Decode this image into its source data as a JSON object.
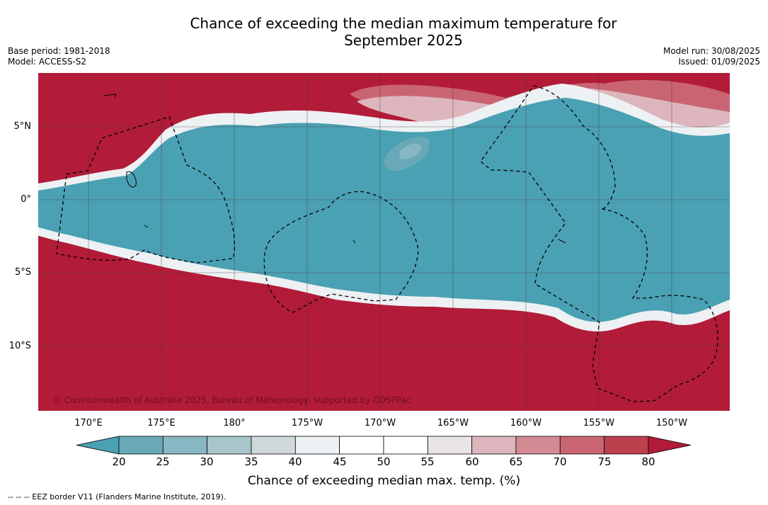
{
  "title_line1": "Chance of exceeding the median maximum temperature for",
  "title_line2": "September 2025",
  "base_period": "Base period: 1981-2018",
  "model": "Model: ACCESS-S2",
  "model_run": "Model run: 30/08/2025",
  "issued": "Issued: 01/09/2025",
  "lat_labels": [
    "5°N",
    "0°",
    "5°S",
    "10°S"
  ],
  "lon_labels": [
    "170°E",
    "175°E",
    "180°",
    "175°W",
    "170°W",
    "165°W",
    "160°W",
    "155°W",
    "150°W"
  ],
  "colorbar": {
    "ticks": [
      "20",
      "25",
      "30",
      "35",
      "40",
      "45",
      "50",
      "55",
      "60",
      "65",
      "70",
      "75",
      "80"
    ],
    "colors": [
      "#4aa1b3",
      "#69a9b7",
      "#87b7c3",
      "#a7c5cb",
      "#cfd8da",
      "#edf1f3",
      "#ffffff",
      "#ffffff",
      "#e9e4e5",
      "#ddb6bd",
      "#d38b94",
      "#c96573",
      "#bd404f",
      "#b21c39"
    ],
    "label": "Chance of exceeding median max. temp. (%)"
  },
  "copyright": "© Commonwealth of Australia 2025, Bureau of Meteorology, supported by COSPPac",
  "footer": "--  --  -- EEZ border V11 (Flanders Marine Institute, 2019)."
}
